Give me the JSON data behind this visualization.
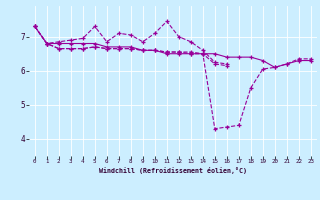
{
  "xlabel": "Windchill (Refroidissement éolien,°C)",
  "background_color": "#cceeff",
  "line_color": "#990099",
  "xlim": [
    -0.5,
    23.5
  ],
  "ylim": [
    3.5,
    7.9
  ],
  "yticks": [
    4,
    5,
    6,
    7
  ],
  "xticks": [
    0,
    1,
    2,
    3,
    4,
    5,
    6,
    7,
    8,
    9,
    10,
    11,
    12,
    13,
    14,
    15,
    16,
    17,
    18,
    19,
    20,
    21,
    22,
    23
  ],
  "series": [
    {
      "y": [
        7.3,
        6.8,
        6.8,
        6.8,
        6.8,
        6.8,
        6.7,
        6.7,
        6.7,
        6.6,
        6.6,
        6.5,
        6.5,
        6.5,
        6.5,
        6.5,
        6.4,
        6.4,
        6.4,
        6.3,
        6.1,
        6.2,
        6.3,
        6.3
      ],
      "ls": "-"
    },
    {
      "y": [
        7.3,
        6.8,
        6.85,
        6.9,
        6.95,
        7.3,
        6.85,
        7.1,
        7.05,
        6.85,
        7.1,
        7.45,
        7.0,
        6.85,
        6.6,
        6.25,
        6.2,
        null,
        null,
        null,
        null,
        null,
        null,
        null
      ],
      "ls": "--"
    },
    {
      "y": [
        7.3,
        6.8,
        6.65,
        6.65,
        6.65,
        6.7,
        6.65,
        6.65,
        6.65,
        6.6,
        6.6,
        6.55,
        6.55,
        6.55,
        6.5,
        6.2,
        6.15,
        null,
        null,
        null,
        null,
        null,
        null,
        null
      ],
      "ls": "--"
    },
    {
      "y": [
        7.3,
        6.8,
        6.65,
        6.65,
        6.65,
        6.7,
        6.65,
        6.65,
        6.65,
        6.6,
        6.6,
        6.55,
        6.55,
        6.5,
        6.5,
        4.3,
        4.35,
        4.4,
        5.5,
        6.05,
        6.1,
        6.2,
        6.35,
        6.35
      ],
      "ls": "--"
    }
  ]
}
